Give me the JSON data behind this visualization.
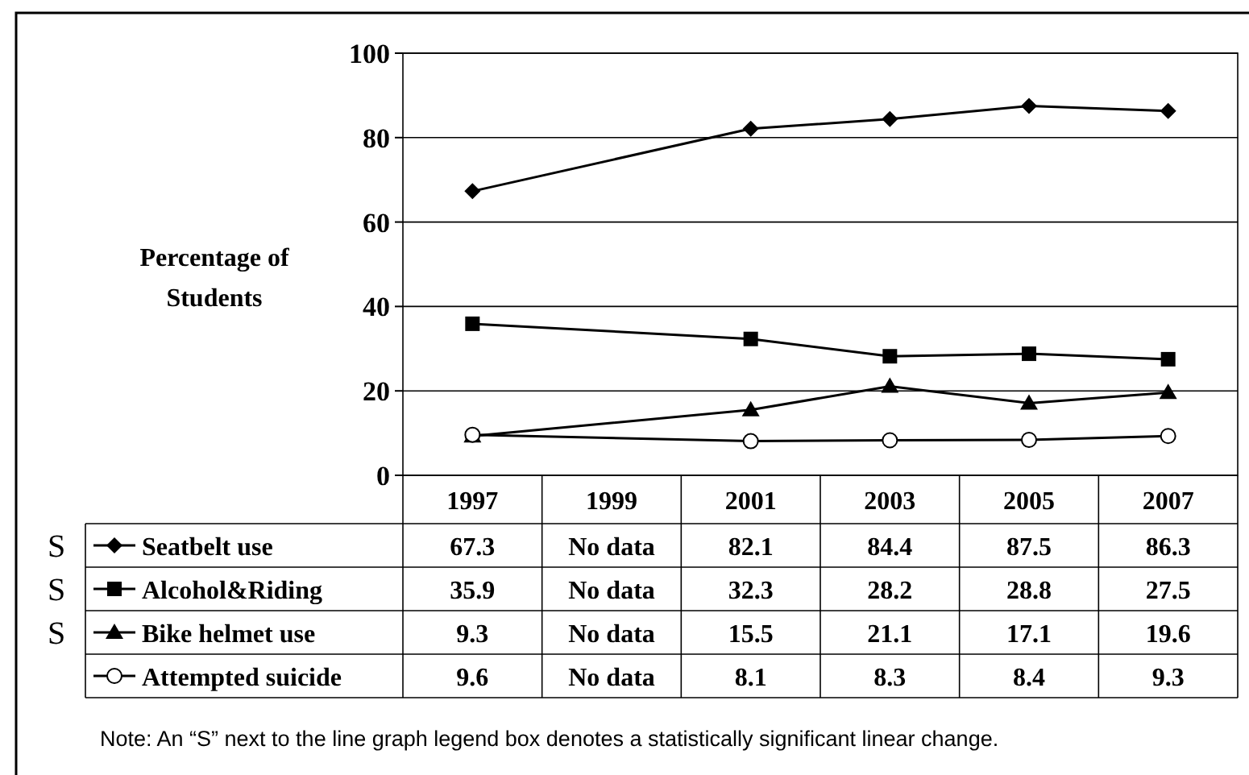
{
  "chart_data": {
    "type": "line",
    "ylabel": "Percentage of Students",
    "categories": [
      "1997",
      "1999",
      "2001",
      "2003",
      "2005",
      "2007"
    ],
    "ylim": [
      0,
      100
    ],
    "yticks": [
      0,
      20,
      40,
      60,
      80,
      100
    ],
    "grid": "y",
    "legend": "bottom",
    "data_labels": true,
    "series": [
      {
        "name": "Seatbelt use",
        "color": "#000000",
        "marker": "diamond",
        "values": [
          67.3,
          null,
          82.1,
          84.4,
          87.5,
          86.3
        ],
        "value_labels": [
          "67.3",
          "No data",
          "82.1",
          "84.4",
          "87.5",
          "86.3"
        ]
      },
      {
        "name": "Alcohol&Riding",
        "color": "#000000",
        "marker": "square",
        "values": [
          35.9,
          null,
          32.3,
          28.2,
          28.8,
          27.5
        ],
        "value_labels": [
          "35.9",
          "No data",
          "32.3",
          "28.2",
          "28.8",
          "27.5"
        ]
      },
      {
        "name": "Bike helmet use",
        "color": "#000000",
        "marker": "triangle",
        "values": [
          9.3,
          null,
          15.5,
          21.1,
          17.1,
          19.6
        ],
        "value_labels": [
          "9.3",
          "No data",
          "15.5",
          "21.1",
          "17.1",
          "19.6"
        ]
      },
      {
        "name": "Attempted suicide",
        "color": "#000000",
        "marker": "circle",
        "values": [
          9.6,
          null,
          8.1,
          8.3,
          8.4,
          9.3
        ],
        "value_labels": [
          "9.6",
          "No data",
          "8.1",
          "8.3",
          "8.4",
          "9.3"
        ]
      }
    ],
    "annotations": [
      "S",
      "S",
      "S",
      "Note:  An “S” next to the line graph legend box denotes a statistically significant linear change."
    ]
  }
}
